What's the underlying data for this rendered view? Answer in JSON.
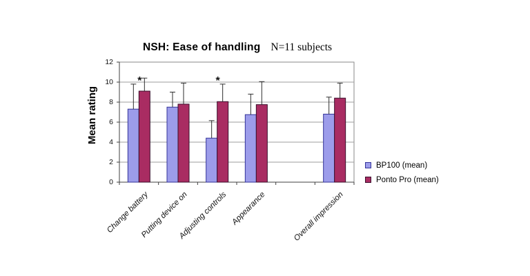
{
  "page": {
    "background": "#ffffff"
  },
  "chart_data": {
    "type": "bar",
    "title": "NSH: Ease of handling",
    "subtitle": "N=11 subjects",
    "xlabel": "",
    "ylabel": "Mean rating",
    "ylim": [
      0,
      12
    ],
    "ytick_step": 2,
    "ytick_labels": [
      "0",
      "2",
      "4",
      "6",
      "8",
      "10",
      "12"
    ],
    "grid": true,
    "legend_position": "right-middle",
    "bar_orientation": "vertical",
    "error_bars": "upper-only",
    "categories": [
      "Change battery",
      "Putting device on",
      "Adjusting controls",
      "Appearance",
      "Overall impression"
    ],
    "category_slots": [
      0,
      1,
      2,
      3,
      5
    ],
    "num_slots": 6,
    "series": [
      {
        "name": "BP100 (mean)",
        "color": "#9c9cea",
        "border": "#333399",
        "values": [
          7.3,
          7.5,
          4.4,
          6.75,
          6.8
        ],
        "error_top": [
          9.8,
          9.0,
          6.15,
          8.8,
          8.5
        ]
      },
      {
        "name": "Ponto Pro (mean)",
        "color": "#a92c62",
        "border": "#3a0f2c",
        "values": [
          9.1,
          7.8,
          8.05,
          7.75,
          8.4
        ],
        "error_top": [
          10.4,
          9.9,
          9.8,
          10.05,
          9.9
        ]
      }
    ],
    "significance_markers": {
      "symbol": "*",
      "categories": [
        "Change battery",
        "Adjusting controls"
      ]
    }
  },
  "colors": {
    "gridline": "#9c9c9c",
    "plot_frame": "#8a8a8a",
    "axis": "#3f3f3f",
    "error_bar": "#2e2e2e",
    "marker_text": "#111111",
    "plot_background": "#ffffff"
  }
}
